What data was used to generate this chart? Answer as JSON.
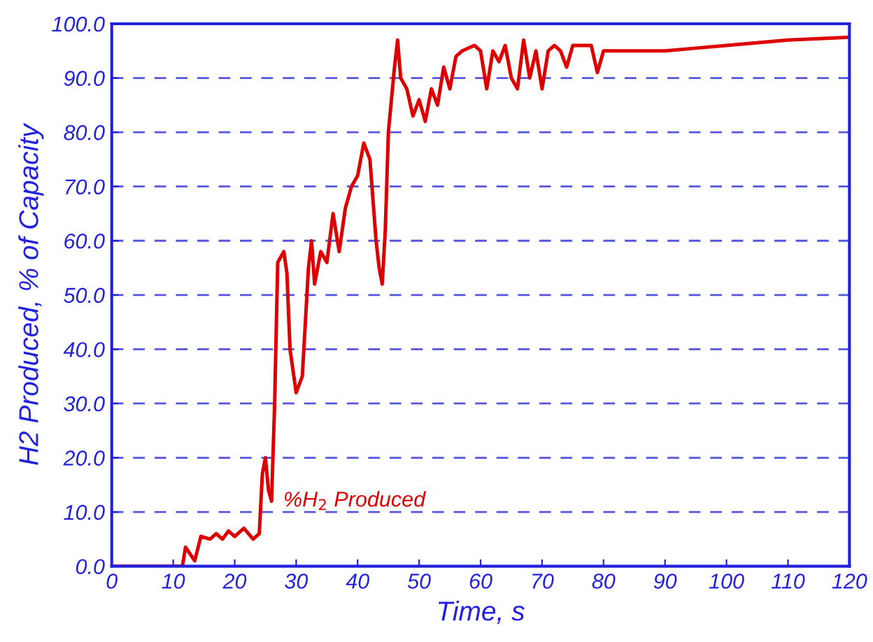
{
  "chart_data": {
    "type": "line",
    "xlabel": "Time, s",
    "ylabel": "H2 Produced, % of Capacity",
    "xlim": [
      0,
      120
    ],
    "xticks": [
      0,
      10,
      20,
      30,
      40,
      50,
      60,
      70,
      80,
      90,
      100,
      110,
      120
    ],
    "ylim": [
      0,
      100
    ],
    "yticks": [
      {
        "value": 0,
        "label": "0.0"
      },
      {
        "value": 10,
        "label": "10.0"
      },
      {
        "value": 20,
        "label": "20.0"
      },
      {
        "value": 30,
        "label": "30.0"
      },
      {
        "value": 40,
        "label": "40.0"
      },
      {
        "value": 50,
        "label": "50.0"
      },
      {
        "value": 60,
        "label": "60.0"
      },
      {
        "value": 70,
        "label": "70.0"
      },
      {
        "value": 80,
        "label": "80.0"
      },
      {
        "value": 90,
        "label": "90.0"
      },
      {
        "value": 100,
        "label": "100.0"
      }
    ],
    "grid": "y",
    "marker": "none",
    "line_style": "solid",
    "annotations": [
      {
        "text": "%H$_{2}$ Produced",
        "x": 26,
        "y": 12
      }
    ],
    "series": [
      {
        "color": "#dd0000",
        "x": [
          0,
          11.5,
          12,
          13.5,
          14.5,
          16,
          17,
          18,
          19,
          20,
          21.5,
          23,
          24,
          24.5,
          25,
          25.5,
          26,
          26.5,
          27,
          28,
          28.5,
          29,
          30,
          31,
          32,
          32.5,
          33,
          34,
          35,
          36,
          37,
          38,
          39,
          40,
          41,
          42,
          43,
          43.5,
          44,
          44.5,
          45,
          46,
          46.5,
          47,
          48,
          49,
          50,
          51,
          52,
          53,
          54,
          55,
          56,
          57,
          59,
          60,
          61,
          62,
          63,
          64,
          65,
          66,
          67,
          68,
          69,
          70,
          71,
          72,
          73,
          74,
          75,
          76,
          78,
          79,
          80,
          85,
          90,
          95,
          100,
          110,
          120
        ],
        "values": [
          0,
          0,
          3.5,
          1,
          5.5,
          5,
          6,
          5,
          6.5,
          5.5,
          7,
          5,
          6,
          17,
          20,
          14,
          12,
          30,
          56,
          58,
          54,
          40,
          32,
          35,
          55,
          60,
          52,
          58,
          56,
          65,
          58,
          66,
          70,
          72,
          78,
          75,
          60,
          55,
          52,
          62,
          80,
          92,
          97,
          90,
          88,
          83,
          86,
          82,
          88,
          85,
          92,
          88,
          94,
          95,
          96,
          95,
          88,
          95,
          93,
          96,
          90,
          88,
          97,
          90,
          95,
          88,
          95,
          96,
          95,
          92,
          96,
          96,
          96,
          91,
          95,
          95,
          95,
          95.5,
          96,
          97,
          97.5
        ]
      }
    ]
  }
}
